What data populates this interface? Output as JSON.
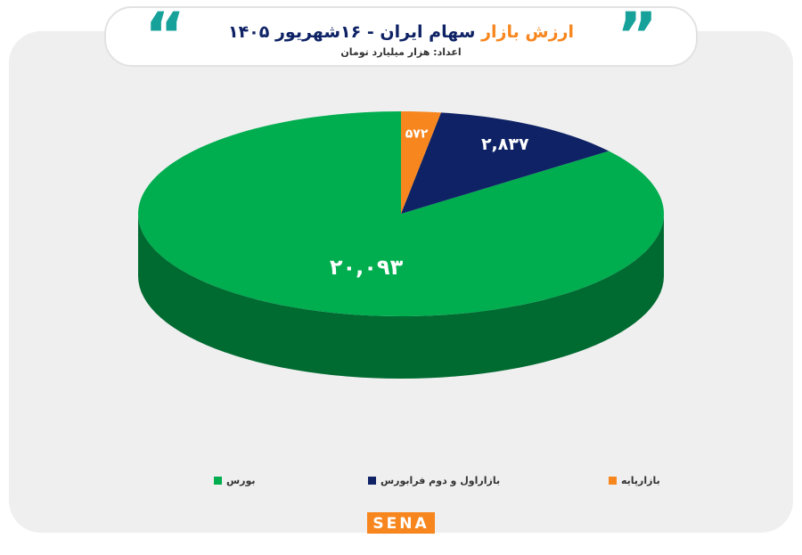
{
  "chart_data": {
    "type": "pie",
    "title": [
      "ارزش بازار",
      "سهام ایران",
      "- ۱۶شهریور ۱۴۰۵"
    ],
    "subtitle": "اعداد: هزار میلیارد تومان",
    "categories": [
      "بورس",
      "بازاراول و دوم فرابورس",
      "بازارپایه"
    ],
    "values": [
      20093,
      2837,
      572
    ],
    "value_labels": [
      "۲۰,۰۹۳",
      "۲,۸۳۷",
      "۵۷۲"
    ],
    "colors": [
      "#00ad4f",
      "#0e2265",
      "#f7861e"
    ],
    "logo": "SENA"
  }
}
